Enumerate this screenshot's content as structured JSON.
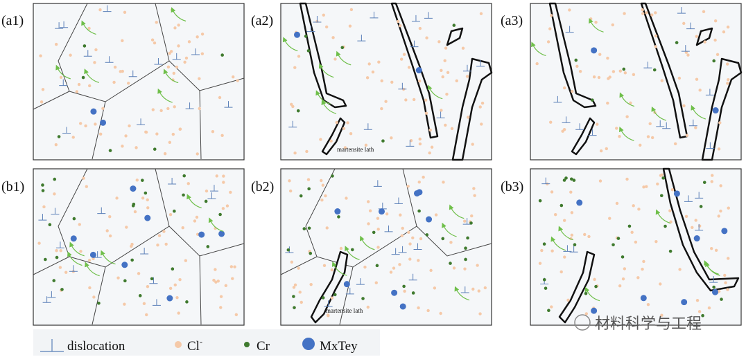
{
  "panels": [
    {
      "label": "(a1)"
    },
    {
      "label": "(a2)",
      "annotation": "martensite lath"
    },
    {
      "label": "(a3)"
    },
    {
      "label": "(b1)"
    },
    {
      "label": "(b2)",
      "annotation": "martensite lath"
    },
    {
      "label": "(b3)"
    }
  ],
  "legend": {
    "dislocation": "dislocation",
    "chloride": {
      "label": "Cl",
      "superscript": "-"
    },
    "chromium": "Cr",
    "precipitate": "MxTey"
  },
  "watermark": "材料科学与工程"
}
